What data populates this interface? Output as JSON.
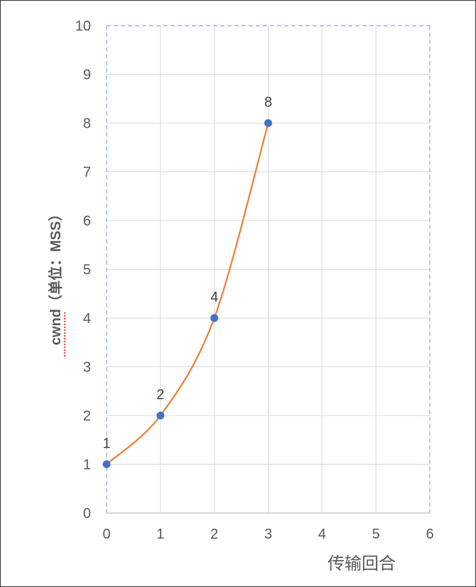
{
  "chart_data": {
    "type": "line",
    "title": "",
    "xlabel": "传输回合",
    "ylabel": "cwnd（单位：MSS）",
    "ylabel_misspelled_part": "cwnd",
    "xlim": [
      0,
      6
    ],
    "ylim": [
      0,
      10
    ],
    "x_ticks": [
      0,
      1,
      2,
      3,
      4,
      5,
      6
    ],
    "y_ticks": [
      0,
      1,
      2,
      3,
      4,
      5,
      6,
      7,
      8,
      9,
      10
    ],
    "grid": true,
    "legend": "none",
    "series": [
      {
        "x": [
          0,
          1,
          2,
          3
        ],
        "values": [
          1,
          2,
          4,
          8
        ],
        "data_labels": [
          "1",
          "2",
          "4",
          "8"
        ],
        "line_color": "#ED7D31",
        "marker_color": "#4472C4",
        "smooth": true
      }
    ],
    "colors": {
      "grid": "#D9D9D9",
      "plot_border": "#8EA9DB",
      "axis": "#BFBFBF",
      "text": "#595959",
      "spellcheck": "#FF0000"
    }
  }
}
